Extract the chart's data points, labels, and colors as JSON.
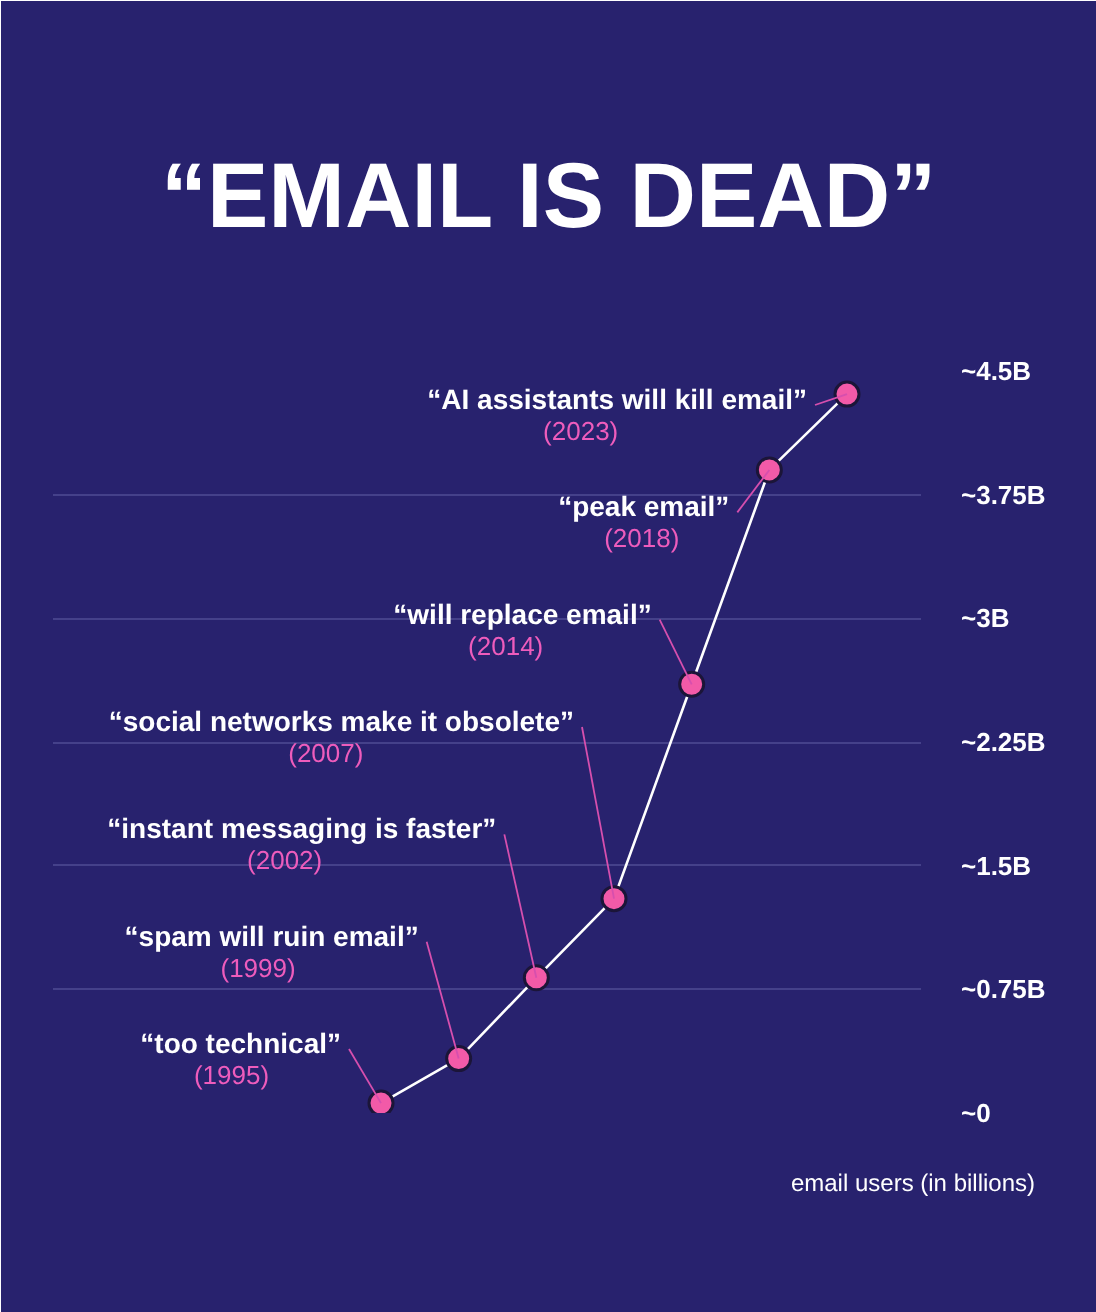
{
  "chart_data": {
    "type": "line",
    "title": "“EMAIL IS DEAD”",
    "ylabel": "email users (in billions)",
    "categories": [
      null,
      null,
      null,
      null,
      null,
      null,
      null
    ],
    "values": [
      0.06,
      0.33,
      0.82,
      1.3,
      2.6,
      3.9,
      4.36
    ],
    "color": "#f25aa8",
    "ylim": [
      0,
      4.5
    ],
    "yticks": [
      {
        "value": 0,
        "label": "~0"
      },
      {
        "value": 0.75,
        "label": "~0.75B"
      },
      {
        "value": 1.5,
        "label": "~1.5B"
      },
      {
        "value": 2.25,
        "label": "~2.25B"
      },
      {
        "value": 3,
        "label": "~3B"
      },
      {
        "value": 3.75,
        "label": "~3.75B"
      },
      {
        "value": 4.5,
        "label": "~4.5B"
      }
    ],
    "grid": "y",
    "tick_labels": "y",
    "marker": "circle",
    "line_style": "solid",
    "annotations": [
      "“too technical”\n(1995)",
      "“spam will ruin email”\n(1999)",
      "“instant messaging is faster”\n(2002)",
      "“social networks make it obsolete”\n(2007)",
      "“will replace email”\n(2014)",
      "“peak email”\n(2018)",
      "“AI assistants will kill email”\n(2023)"
    ]
  }
}
